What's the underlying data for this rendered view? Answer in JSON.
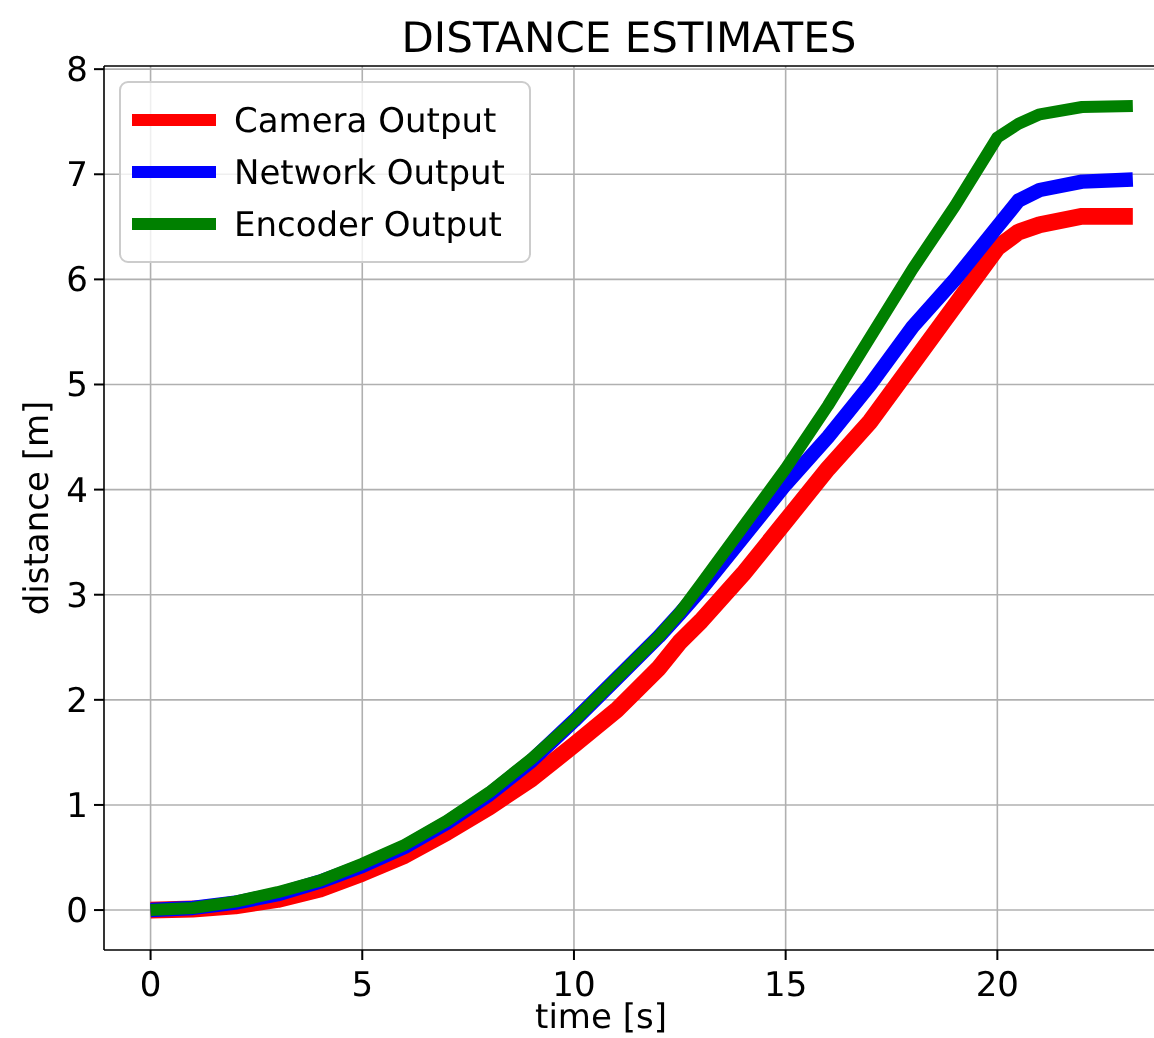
{
  "chart_data": {
    "type": "line",
    "title": "DISTANCE ESTIMATES",
    "xlabel": "time [s]",
    "ylabel": "distance [m]",
    "xlim": [
      -1.1,
      23.7
    ],
    "xticks": [
      0,
      5,
      10,
      15,
      20
    ],
    "ylim": [
      -0.38,
      8.03
    ],
    "yticks": [
      0,
      1,
      2,
      3,
      4,
      5,
      6,
      7,
      8
    ],
    "grid": true,
    "legend": "top left",
    "line_style": "solid",
    "marker": "none",
    "x": [
      0,
      1,
      2,
      3,
      4,
      5,
      6,
      7,
      8,
      9,
      10,
      11,
      12,
      12.5,
      13,
      14,
      15,
      16,
      17,
      18,
      19,
      20,
      20.5,
      21,
      22,
      23.2
    ],
    "series": [
      {
        "name": "Camera Output",
        "color": "#ff0000",
        "values": [
          0,
          0.01,
          0.04,
          0.1,
          0.2,
          0.35,
          0.52,
          0.74,
          0.98,
          1.25,
          1.57,
          1.9,
          2.3,
          2.55,
          2.75,
          3.2,
          3.7,
          4.2,
          4.65,
          5.2,
          5.75,
          6.3,
          6.45,
          6.52,
          6.6,
          6.6
        ]
      },
      {
        "name": "Network Output",
        "color": "#0000ff",
        "values": [
          0,
          0.02,
          0.07,
          0.15,
          0.27,
          0.42,
          0.6,
          0.83,
          1.1,
          1.42,
          1.8,
          2.2,
          2.6,
          2.82,
          3.05,
          3.55,
          4.05,
          4.5,
          5.0,
          5.55,
          6.0,
          6.5,
          6.75,
          6.85,
          6.93,
          6.95
        ]
      },
      {
        "name": "Encoder Output",
        "color": "#008000",
        "values": [
          0,
          0.02,
          0.08,
          0.17,
          0.28,
          0.44,
          0.62,
          0.85,
          1.12,
          1.44,
          1.8,
          2.2,
          2.6,
          2.83,
          3.1,
          3.65,
          4.2,
          4.8,
          5.45,
          6.1,
          6.7,
          7.35,
          7.48,
          7.57,
          7.64,
          7.65
        ]
      }
    ]
  }
}
